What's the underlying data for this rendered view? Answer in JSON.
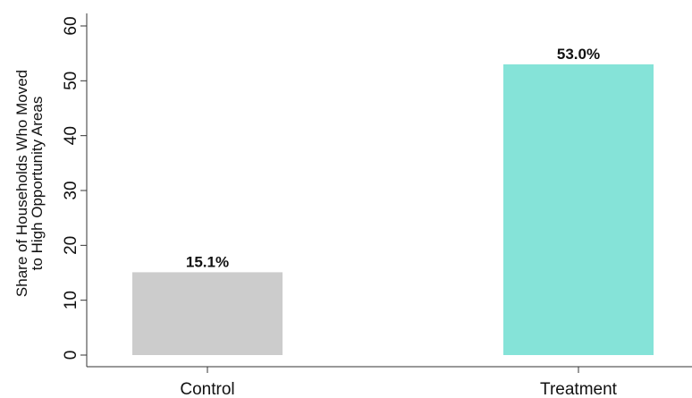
{
  "chart_data": {
    "type": "bar",
    "categories": [
      "Control",
      "Treatment"
    ],
    "values": [
      15.1,
      53.0
    ],
    "data_labels": [
      "15.1%",
      "53.0%"
    ],
    "colors": [
      "#cccccc",
      "#85e3d8"
    ],
    "title": "",
    "xlabel": "",
    "ylabel_lines": [
      "Share of Households Who Moved",
      "to High Opportunity Areas"
    ],
    "ylim": [
      0,
      60
    ],
    "yticks": [
      0,
      10,
      20,
      30,
      40,
      50,
      60
    ],
    "grid": false,
    "legend": "none"
  }
}
